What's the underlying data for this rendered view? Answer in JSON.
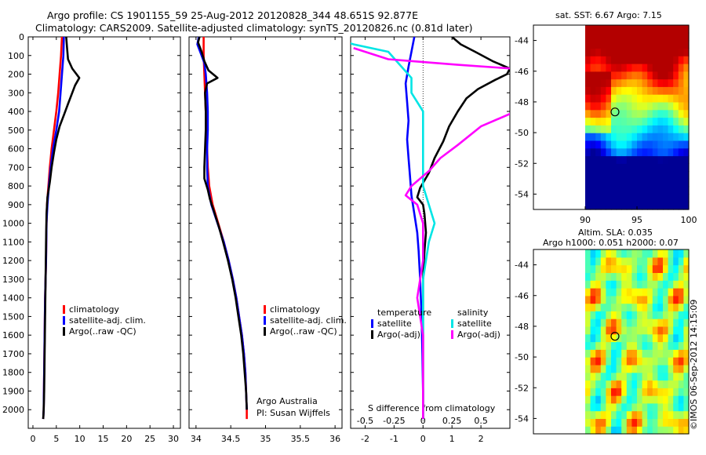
{
  "header": {
    "title_line1": "Argo profile: CS 1901155_59 25-Aug-2012 20120828_344 48.651S 92.877E",
    "title_line2": "Climatology: CARS2009. Satellite-adjusted climatology: synTS_20120826.nc (0.81d later)"
  },
  "sst_panel": {
    "title": "sat. SST: 6.67 Argo: 7.15"
  },
  "sla_panel": {
    "title_line1": "Altim. SLA: 0.035",
    "title_line2": "Argo h1000: 0.051 h2000: 0.07"
  },
  "credit": {
    "text": "©IMOS 06-Sep-2012 14:15:09"
  },
  "colors": {
    "climatology": "#ff0000",
    "satellite": "#0000ff",
    "argo": "#000000",
    "satellite_salinity": "#00e5e5",
    "argo_salinity": "#ff00ff"
  },
  "chart_data": [
    {
      "type": "line",
      "panel": "temperature profile",
      "y_axis": "depth",
      "ylim": [
        2100,
        0
      ],
      "yticks": [
        0,
        100,
        200,
        300,
        400,
        500,
        600,
        700,
        800,
        900,
        1000,
        1100,
        1200,
        1300,
        1400,
        1500,
        1600,
        1700,
        1800,
        1900,
        2000
      ],
      "xlim": [
        -1,
        31.5
      ],
      "xticks": [
        0,
        5,
        10,
        15,
        20,
        25,
        30
      ],
      "legend": [
        "climatology",
        "satellite-adj. clim.",
        "Argo(..raw -QC)"
      ],
      "series": [
        {
          "name": "climatology",
          "color": "#ff0000",
          "points": [
            [
              6.2,
              0
            ],
            [
              6.0,
              100
            ],
            [
              5.7,
              200
            ],
            [
              5.4,
              300
            ],
            [
              5.0,
              400
            ],
            [
              4.5,
              500
            ],
            [
              4.0,
              600
            ],
            [
              3.6,
              700
            ],
            [
              3.3,
              800
            ],
            [
              3.0,
              900
            ],
            [
              2.9,
              1000
            ],
            [
              2.8,
              1200
            ],
            [
              2.6,
              1400
            ],
            [
              2.5,
              1600
            ],
            [
              2.4,
              1800
            ],
            [
              2.3,
              2000
            ],
            [
              2.2,
              2050
            ]
          ]
        },
        {
          "name": "satellite-adj. clim.",
          "color": "#0000ff",
          "points": [
            [
              6.6,
              0
            ],
            [
              6.5,
              100
            ],
            [
              6.2,
              200
            ],
            [
              5.9,
              300
            ],
            [
              5.6,
              400
            ],
            [
              5.0,
              500
            ],
            [
              4.3,
              600
            ],
            [
              3.8,
              700
            ],
            [
              3.4,
              800
            ],
            [
              3.1,
              900
            ],
            [
              2.9,
              1000
            ],
            [
              2.8,
              1200
            ],
            [
              2.6,
              1400
            ],
            [
              2.5,
              1600
            ],
            [
              2.4,
              1800
            ],
            [
              2.3,
              2000
            ],
            [
              2.2,
              2050
            ]
          ]
        },
        {
          "name": "Argo(..raw -QC)",
          "color": "#000000",
          "points": [
            [
              7.1,
              0
            ],
            [
              7.3,
              60
            ],
            [
              7.5,
              120
            ],
            [
              8.4,
              170
            ],
            [
              9.9,
              220
            ],
            [
              9.0,
              260
            ],
            [
              8.4,
              300
            ],
            [
              7.5,
              360
            ],
            [
              6.6,
              420
            ],
            [
              5.7,
              480
            ],
            [
              5.0,
              550
            ],
            [
              4.5,
              620
            ],
            [
              4.0,
              700
            ],
            [
              3.6,
              780
            ],
            [
              3.1,
              860
            ],
            [
              2.9,
              950
            ],
            [
              2.8,
              1100
            ],
            [
              2.7,
              1300
            ],
            [
              2.6,
              1500
            ],
            [
              2.5,
              1700
            ],
            [
              2.4,
              1900
            ],
            [
              2.3,
              2000
            ],
            [
              2.2,
              2050
            ]
          ]
        }
      ]
    },
    {
      "type": "line",
      "panel": "salinity profile",
      "y_axis": "depth",
      "ylim": [
        2100,
        0
      ],
      "xlim": [
        33.9,
        36.1
      ],
      "xticks": [
        34,
        34.5,
        35,
        35.5,
        36
      ],
      "legend": [
        "climatology",
        "satellite-adj. clim.",
        "Argo(..raw -QC)"
      ],
      "annotation": [
        "Argo Australia",
        "PI: Susan Wijffels"
      ],
      "series": [
        {
          "name": "climatology",
          "color": "#ff0000",
          "points": [
            [
              34.11,
              0
            ],
            [
              34.11,
              100
            ],
            [
              34.12,
              200
            ],
            [
              34.13,
              300
            ],
            [
              34.14,
              400
            ],
            [
              34.15,
              500
            ],
            [
              34.16,
              600
            ],
            [
              34.17,
              700
            ],
            [
              34.19,
              800
            ],
            [
              34.24,
              900
            ],
            [
              34.32,
              1000
            ],
            [
              34.4,
              1100
            ],
            [
              34.47,
              1200
            ],
            [
              34.53,
              1300
            ],
            [
              34.58,
              1400
            ],
            [
              34.62,
              1500
            ],
            [
              34.66,
              1600
            ],
            [
              34.69,
              1700
            ],
            [
              34.71,
              1800
            ],
            [
              34.72,
              1900
            ],
            [
              34.73,
              2000
            ],
            [
              34.73,
              2050
            ]
          ]
        },
        {
          "name": "satellite-adj. clim.",
          "color": "#0000ff",
          "points": [
            [
              34.04,
              0
            ],
            [
              34.02,
              40
            ],
            [
              34.06,
              80
            ],
            [
              34.12,
              140
            ],
            [
              34.14,
              200
            ],
            [
              34.16,
              300
            ],
            [
              34.17,
              400
            ],
            [
              34.17,
              500
            ],
            [
              34.16,
              600
            ],
            [
              34.16,
              700
            ],
            [
              34.17,
              800
            ],
            [
              34.22,
              900
            ],
            [
              34.31,
              1000
            ],
            [
              34.4,
              1100
            ],
            [
              34.47,
              1200
            ],
            [
              34.53,
              1300
            ],
            [
              34.58,
              1400
            ],
            [
              34.62,
              1500
            ],
            [
              34.66,
              1600
            ],
            [
              34.69,
              1700
            ],
            [
              34.71,
              1800
            ],
            [
              34.72,
              1900
            ],
            [
              34.73,
              2000
            ]
          ]
        },
        {
          "name": "Argo(..raw -QC)",
          "color": "#000000",
          "points": [
            [
              34.05,
              0
            ],
            [
              34.03,
              30
            ],
            [
              34.08,
              80
            ],
            [
              34.12,
              130
            ],
            [
              34.18,
              180
            ],
            [
              34.31,
              220
            ],
            [
              34.16,
              250
            ],
            [
              34.13,
              300
            ],
            [
              34.14,
              400
            ],
            [
              34.14,
              500
            ],
            [
              34.13,
              600
            ],
            [
              34.12,
              700
            ],
            [
              34.12,
              760
            ],
            [
              34.17,
              820
            ],
            [
              34.2,
              870
            ],
            [
              34.27,
              950
            ],
            [
              34.33,
              1020
            ],
            [
              34.39,
              1100
            ],
            [
              34.46,
              1200
            ],
            [
              34.52,
              1300
            ],
            [
              34.57,
              1400
            ],
            [
              34.61,
              1500
            ],
            [
              34.65,
              1600
            ],
            [
              34.68,
              1700
            ],
            [
              34.7,
              1800
            ],
            [
              34.72,
              1900
            ],
            [
              34.73,
              2000
            ]
          ]
        }
      ]
    },
    {
      "type": "line",
      "panel": "difference from climatology",
      "y_axis": "depth",
      "ylim": [
        2100,
        0
      ],
      "xlim": [
        -2.5,
        3
      ],
      "xticks_temperature": [
        -2,
        -1,
        0,
        1,
        2
      ],
      "xticks_salinity": [
        -0.5,
        -0.25,
        0,
        0.25,
        0.5
      ],
      "xlabel": "S difference from climatology",
      "legend": [
        "temperature",
        "satellite",
        "Argo(-adj)",
        "salinity",
        "satellite",
        "Argo(-adj)"
      ],
      "series": [
        {
          "name": "satellite",
          "group": "temperature",
          "color": "#0000ff",
          "points": [
            [
              -0.3,
              0
            ],
            [
              -0.4,
              80
            ],
            [
              -0.5,
              160
            ],
            [
              -0.6,
              250
            ],
            [
              -0.55,
              350
            ],
            [
              -0.5,
              450
            ],
            [
              -0.55,
              550
            ],
            [
              -0.5,
              650
            ],
            [
              -0.45,
              750
            ],
            [
              -0.4,
              850
            ],
            [
              -0.3,
              950
            ],
            [
              -0.2,
              1050
            ],
            [
              -0.15,
              1150
            ],
            [
              -0.1,
              1300
            ],
            [
              -0.05,
              1500
            ],
            [
              -0.02,
              1700
            ],
            [
              0,
              1900
            ],
            [
              0,
              2050
            ]
          ]
        },
        {
          "name": "Argo(-adj)",
          "group": "temperature",
          "color": "#000000",
          "points": [
            [
              1.0,
              0
            ],
            [
              1.3,
              40
            ],
            [
              1.8,
              80
            ],
            [
              2.4,
              130
            ],
            [
              3.0,
              170
            ],
            [
              2.9,
              200
            ],
            [
              2.5,
              230
            ],
            [
              1.9,
              280
            ],
            [
              1.5,
              330
            ],
            [
              1.2,
              400
            ],
            [
              0.9,
              480
            ],
            [
              0.7,
              560
            ],
            [
              0.4,
              650
            ],
            [
              0.2,
              730
            ],
            [
              -0.1,
              810
            ],
            [
              -0.2,
              860
            ],
            [
              0.0,
              900
            ],
            [
              0.05,
              950
            ],
            [
              0.1,
              1050
            ],
            [
              0.05,
              1150
            ],
            [
              0.0,
              1300
            ],
            [
              0.0,
              1500
            ],
            [
              0.0,
              1700
            ],
            [
              0.0,
              1900
            ],
            [
              0.0,
              2050
            ]
          ]
        },
        {
          "name": "satellite",
          "group": "salinity",
          "color": "#00e5e5",
          "points": [
            [
              -0.8,
              0
            ],
            [
              -0.6,
              40
            ],
            [
              -0.3,
              80
            ],
            [
              -0.2,
              150
            ],
            [
              -0.1,
              220
            ],
            [
              -0.1,
              300
            ],
            [
              0.0,
              400
            ],
            [
              0.0,
              500
            ],
            [
              0.0,
              600
            ],
            [
              0.0,
              700
            ],
            [
              0.0,
              800
            ],
            [
              0.05,
              900
            ],
            [
              0.1,
              1000
            ],
            [
              0.05,
              1100
            ],
            [
              0.0,
              1300
            ],
            [
              0.0,
              1500
            ],
            [
              0.0,
              1700
            ],
            [
              0.0,
              1900
            ],
            [
              0.0,
              2050
            ]
          ]
        },
        {
          "name": "Argo(-adj)",
          "group": "salinity",
          "color": "#ff00ff",
          "points": [
            [
              -0.6,
              60
            ],
            [
              -0.3,
              120
            ],
            [
              0.3,
              150
            ],
            [
              1.0,
              180
            ],
            [
              1.6,
              210
            ],
            [
              1.2,
              300
            ],
            [
              0.8,
              400
            ],
            [
              0.5,
              480
            ],
            [
              0.3,
              580
            ],
            [
              0.15,
              650
            ],
            [
              0.05,
              720
            ],
            [
              -0.1,
              800
            ],
            [
              -0.15,
              850
            ],
            [
              -0.05,
              900
            ],
            [
              0.0,
              1000
            ],
            [
              0.0,
              1200
            ],
            [
              -0.05,
              1400
            ],
            [
              0.0,
              1600
            ],
            [
              0.0,
              1800
            ],
            [
              0.0,
              2050
            ]
          ]
        }
      ]
    },
    {
      "type": "heatmap",
      "panel": "satellite SST map",
      "title": "sat. SST: 6.67 Argo: 7.15",
      "xlim": [
        85,
        100
      ],
      "ylim": [
        -55,
        -43
      ],
      "xticks": [
        90,
        95,
        100
      ],
      "yticks": [
        -44,
        -46,
        -48,
        -50,
        -52,
        -54
      ],
      "marker": {
        "lon": 92.877,
        "lat": -48.651
      }
    },
    {
      "type": "heatmap",
      "panel": "altimetry SLA map",
      "title": "Altim. SLA: 0.035",
      "xlim": [
        85,
        100
      ],
      "ylim": [
        -55,
        -43
      ],
      "yticks": [
        -44,
        -46,
        -48,
        -50,
        -52,
        -54
      ],
      "marker": {
        "lon": 92.877,
        "lat": -48.651
      }
    }
  ]
}
